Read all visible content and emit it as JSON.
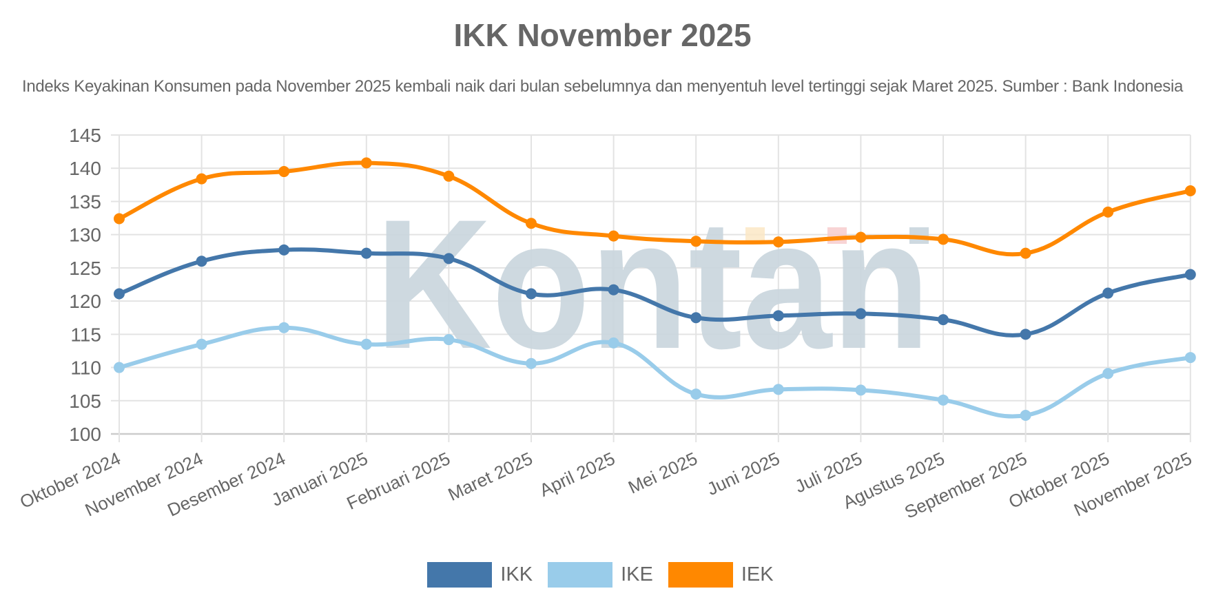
{
  "title": "IKK November 2025",
  "subtitle": "Indeks Keyakinan Konsumen pada November 2025 kembali naik dari bulan sebelumnya dan menyentuh level tertinggi sejak Maret 2025. Sumber : Bank Indonesia",
  "watermark": "Kontan",
  "chart_data": {
    "type": "line",
    "title": "IKK November 2025",
    "subtitle": "Indeks Keyakinan Konsumen pada November 2025 kembali naik dari bulan sebelumnya dan menyentuh level tertinggi sejak Maret 2025. Sumber : Bank Indonesia",
    "xlabel": "",
    "ylabel": "",
    "ylim": [
      100,
      145
    ],
    "yticks": [
      100,
      105,
      110,
      115,
      120,
      125,
      130,
      135,
      140,
      145
    ],
    "grid": true,
    "legend_position": "bottom",
    "curve": "smooth",
    "categories": [
      "Oktober 2024",
      "November 2024",
      "Desember 2024",
      "Januari 2025",
      "Februari 2025",
      "Maret 2025",
      "April 2025",
      "Mei 2025",
      "Juni 2025",
      "Juli 2025",
      "Agustus 2025",
      "September 2025",
      "Oktober 2025",
      "November 2025"
    ],
    "series": [
      {
        "name": "IKK",
        "color": "#4477aa",
        "values": [
          121.1,
          126.0,
          127.7,
          127.2,
          126.4,
          121.1,
          121.7,
          117.5,
          117.8,
          118.1,
          117.2,
          115.0,
          121.2,
          124.0
        ]
      },
      {
        "name": "IKE",
        "color": "#99ccea",
        "values": [
          110.0,
          113.5,
          116.0,
          113.5,
          114.2,
          110.6,
          113.7,
          106.0,
          106.7,
          106.6,
          105.1,
          102.8,
          109.1,
          111.5
        ]
      },
      {
        "name": "IEK",
        "color": "#ff8800",
        "values": [
          132.4,
          138.4,
          139.5,
          140.8,
          138.8,
          131.7,
          129.8,
          129.0,
          128.9,
          129.6,
          129.3,
          127.2,
          133.4,
          136.6
        ]
      }
    ]
  },
  "legend": [
    {
      "label": "IKK",
      "color": "#4477aa"
    },
    {
      "label": "IKE",
      "color": "#99ccea"
    },
    {
      "label": "IEK",
      "color": "#ff8800"
    }
  ]
}
